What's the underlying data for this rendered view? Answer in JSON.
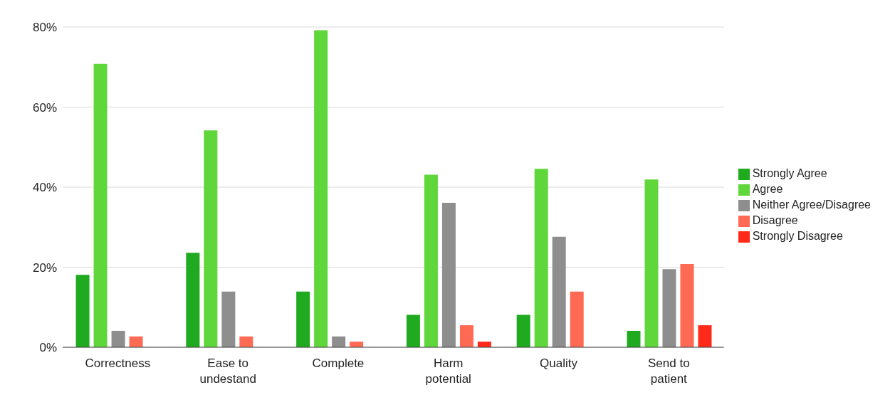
{
  "chart_data": {
    "type": "bar",
    "categories": [
      "Correctness",
      "Ease to undestand",
      "Complete",
      "Harm potential",
      "Quality",
      "Send to patient"
    ],
    "series": [
      {
        "name": "Strongly Agree",
        "color": "#1faa1f",
        "values": [
          18.1,
          23.6,
          13.9,
          8.1,
          8.1,
          4.1
        ]
      },
      {
        "name": "Agree",
        "color": "#5fd63a",
        "values": [
          70.8,
          54.2,
          79.2,
          43.1,
          44.6,
          41.9
        ]
      },
      {
        "name": "Neither Agree/Disagree",
        "color": "#8e8e8e",
        "values": [
          4.1,
          13.9,
          2.7,
          36.1,
          27.6,
          19.5
        ]
      },
      {
        "name": "Disagree",
        "color": "#ff6a55",
        "values": [
          2.7,
          2.7,
          1.4,
          5.5,
          13.9,
          20.8
        ]
      },
      {
        "name": "Strongly Disagree",
        "color": "#ff2a1a",
        "values": [
          0,
          0,
          0,
          1.4,
          0,
          5.5
        ]
      }
    ],
    "ylim": [
      0,
      80
    ],
    "yticks": [
      {
        "value": 0,
        "label": "0%"
      },
      {
        "value": 20,
        "label": "20%"
      },
      {
        "value": 40,
        "label": "40%"
      },
      {
        "value": 60,
        "label": "60%"
      },
      {
        "value": 80,
        "label": "80%"
      }
    ],
    "grid": "y",
    "legend": "right"
  }
}
